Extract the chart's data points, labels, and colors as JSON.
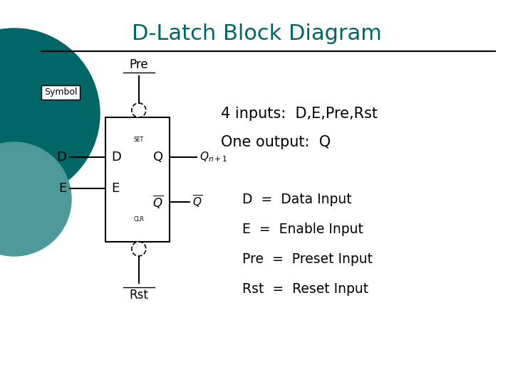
{
  "title": "D-Latch Block Diagram",
  "title_color": "#006666",
  "title_fontsize": 22,
  "background_color": "#ffffff",
  "teal_circle_color": "#006666",
  "teal_circle2_color": "#4d9999",
  "symbol_label": "Symbol",
  "definitions": [
    "D  =  Data Input",
    "E  =  Enable Input",
    "Pre  =  Preset Input",
    "Rst  =  Reset Input"
  ]
}
